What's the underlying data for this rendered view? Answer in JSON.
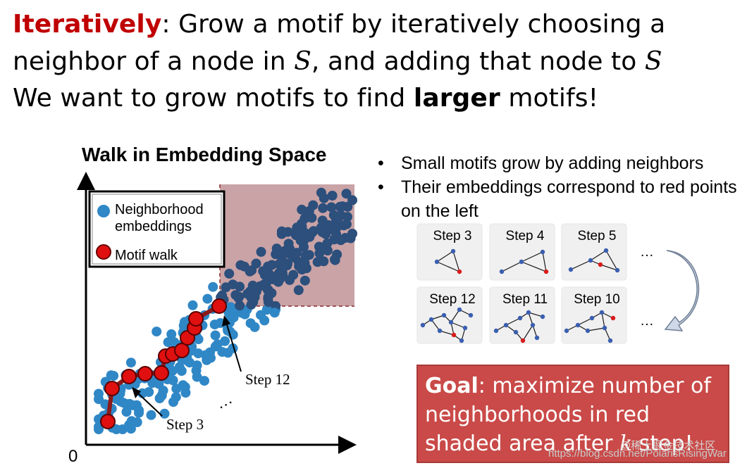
{
  "headline": {
    "line1_keyword": "Iteratively",
    "line1_rest": ": Grow a motif by iteratively choosing a",
    "line2_a": "neighbor of a node in ",
    "line2_var1": "S",
    "line2_b": ", and adding that node to ",
    "line2_var2": "S",
    "line3_a": "We want to grow motifs to find ",
    "line3_bold": "larger",
    "line3_b": " motifs!"
  },
  "scatter": {
    "title": "Walk in Embedding Space",
    "legend_neighborhood_1": "Neighborhood",
    "legend_neighborhood_2": "embeddings",
    "legend_walk": "Motif walk",
    "origin_label": "0",
    "step12_label": "Step 12",
    "step3_label": "Step 3",
    "ellipsis": "…",
    "colors": {
      "neighborhood": "#2f87c6",
      "dark_points": "#2c4f7c",
      "walk": "#e01010",
      "walk_line": "#8b1a1a",
      "shaded": "#c9a3a6"
    }
  },
  "bullets": [
    "Small motifs grow by adding neighbors",
    "Their embeddings correspond to red points on the left"
  ],
  "steps": {
    "top_row": [
      "Step 3",
      "Step 4",
      "Step 5"
    ],
    "bottom_row": [
      "Step 12",
      "Step 11",
      "Step 10"
    ],
    "ellipsis": "…"
  },
  "goal": {
    "bold": "Goal",
    "text_a": ": maximize number of neighborhoods in red shaded area after ",
    "var": "k",
    "text_b": " step!"
  },
  "watermark": {
    "url": "https://blog.csdn.net/PolarisRisingWar",
    "brand": "@稀土掘金技术社区"
  }
}
